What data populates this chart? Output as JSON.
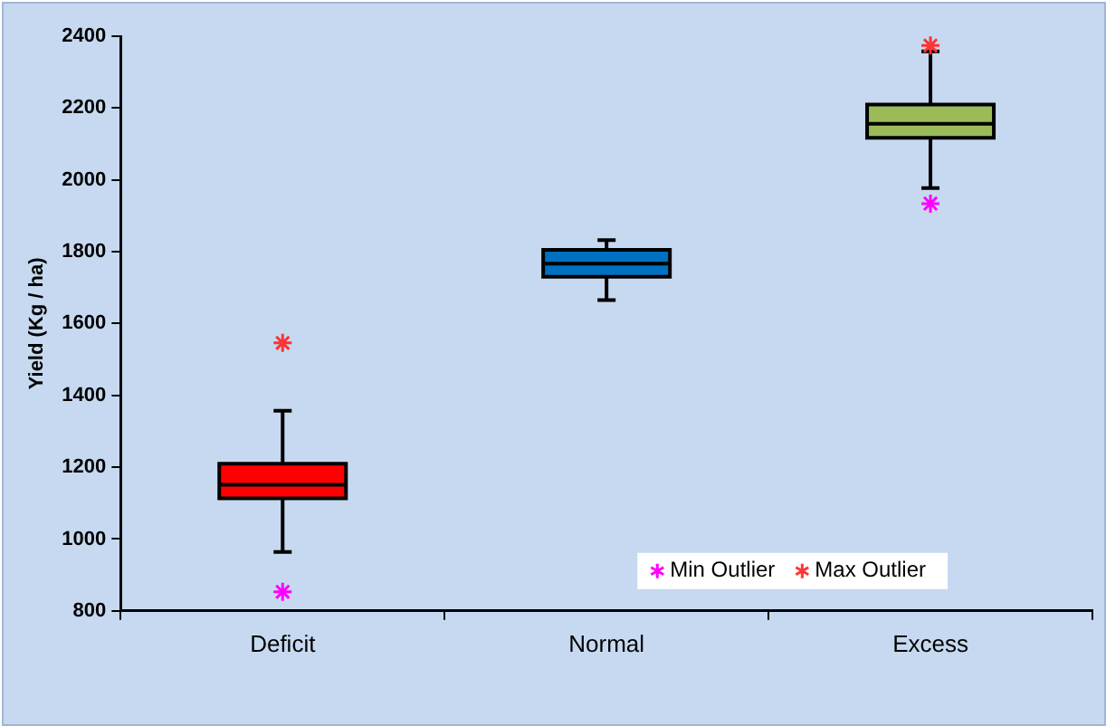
{
  "chart_data": {
    "type": "box",
    "ylabel": "Yield (Kg / ha)",
    "categories": [
      "Deficit",
      "Normal",
      "Excess"
    ],
    "colors": [
      "#ff0000",
      "#0070c0",
      "#9bbb59"
    ],
    "boxes": [
      {
        "low": 964,
        "q1": 1113,
        "median": 1151,
        "q3": 1210,
        "high": 1357
      },
      {
        "low": 1665,
        "q1": 1730,
        "median": 1767,
        "q3": 1805,
        "high": 1832
      },
      {
        "low": 1977,
        "q1": 2117,
        "median": 2156,
        "q3": 2210,
        "high": 2358
      }
    ],
    "series": [
      {
        "type": "scatter",
        "name": "Min Outlier",
        "color": "#ff00ff",
        "x": [
          "Deficit",
          "Normal",
          "Excess"
        ],
        "values": [
          853,
          null,
          1934
        ]
      },
      {
        "type": "scatter",
        "name": "Max Outlier",
        "color": "#ff3333",
        "x": [
          "Deficit",
          "Normal",
          "Excess"
        ],
        "values": [
          1546,
          null,
          2374
        ]
      }
    ],
    "marker": "cross",
    "ylim": [
      800,
      2400
    ],
    "yticks": [
      800,
      1000,
      1200,
      1400,
      1600,
      1800,
      2000,
      2200,
      2400
    ],
    "grid": false,
    "legend": "bottom right"
  }
}
